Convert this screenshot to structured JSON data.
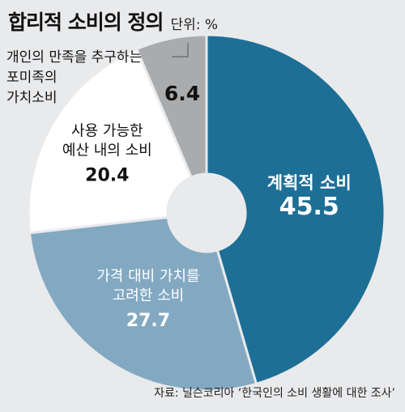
{
  "title": "합리적 소비의 정의",
  "unit": "단위: %",
  "source": "자료: 닐슨코리아 ‘한국인의 소비 생활에 대한 조사’",
  "colors": {
    "background": "#e9eaec",
    "slice_dark_blue": "#1d6f96",
    "slice_light_blue": "#83a9c2",
    "slice_white": "#ffffff",
    "slice_gray": "#a9abad"
  },
  "chart_data": {
    "type": "pie",
    "donut": true,
    "title": "합리적 소비의 정의",
    "unit": "%",
    "start_angle_deg": 0,
    "direction": "clockwise",
    "slices": [
      {
        "lines": [
          "계획적 소비"
        ],
        "value": 45.5,
        "value_label": "45.5",
        "color": "#1d6f96",
        "text_color": "#ffffff"
      },
      {
        "lines": [
          "가격 대비 가치를",
          "고려한 소비"
        ],
        "value": 27.7,
        "value_label": "27.7",
        "color": "#83a9c2",
        "text_color": "#ffffff"
      },
      {
        "lines": [
          "사용 가능한",
          "예산 내의 소비"
        ],
        "value": 20.4,
        "value_label": "20.4",
        "color": "#ffffff",
        "text_color": "#111111"
      },
      {
        "lines": [
          "개인의 만족을 추구하는",
          "포미족의",
          "가치소비"
        ],
        "value": 6.4,
        "value_label": "6.4",
        "color": "#a9abad",
        "text_color": "#111111",
        "callout": true
      }
    ]
  }
}
